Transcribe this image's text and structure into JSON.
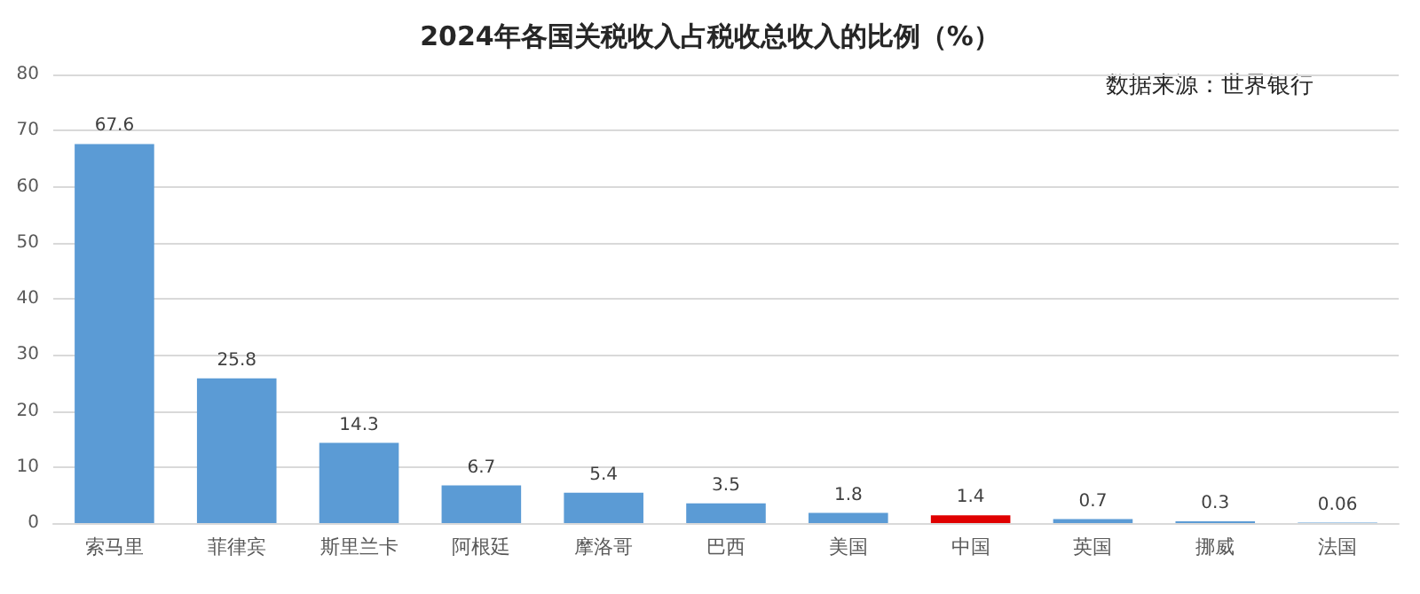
{
  "chart_data": {
    "type": "bar",
    "title": "2024年各国关税收入占税收总收入的比例（%）",
    "categories": [
      "索马里",
      "菲律宾",
      "斯里兰卡",
      "阿根廷",
      "摩洛哥",
      "巴西",
      "美国",
      "中国",
      "英国",
      "挪威",
      "法国"
    ],
    "values": [
      67.6,
      25.8,
      14.3,
      6.7,
      5.4,
      3.5,
      1.8,
      1.4,
      0.7,
      0.3,
      0.06
    ],
    "colors": [
      "#5b9bd5",
      "#5b9bd5",
      "#5b9bd5",
      "#5b9bd5",
      "#5b9bd5",
      "#5b9bd5",
      "#5b9bd5",
      "#e00000",
      "#5b9bd5",
      "#5b9bd5",
      "#5b9bd5"
    ],
    "ylim": [
      0,
      80
    ],
    "yticks": [
      0,
      10,
      20,
      30,
      40,
      50,
      60,
      70,
      80
    ],
    "grid": "y",
    "data_labels": true,
    "annotations": [
      "数据来源：世界银行"
    ]
  }
}
